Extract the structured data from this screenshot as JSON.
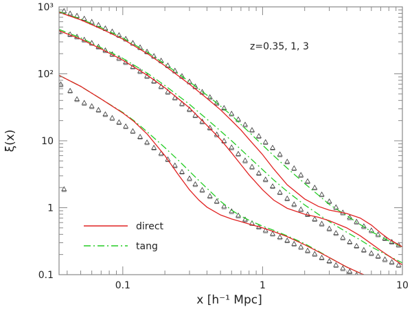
{
  "chart_data": {
    "type": "line",
    "xscale": "log",
    "yscale": "log",
    "xlim": [
      0.035,
      10
    ],
    "ylim": [
      0.1,
      1000
    ],
    "xlabel": "x [h⁻¹ Mpc]",
    "ylabel": "ξ(x)",
    "x_ticks": [
      {
        "value": 0.1,
        "label": "0.1"
      },
      {
        "value": 1,
        "label": "1"
      },
      {
        "value": 10,
        "label": "10"
      }
    ],
    "y_ticks": [
      {
        "value": 0.1,
        "label": "0.1"
      },
      {
        "value": 1,
        "label": "1"
      },
      {
        "value": 10,
        "label": "10"
      },
      {
        "value": 100,
        "label": "10²"
      },
      {
        "value": 1000,
        "label": "10³"
      }
    ],
    "annotation": "z=0.35, 1, 3",
    "legend": {
      "position": "bottom-left",
      "entries": [
        {
          "label": "direct",
          "color": "#e02020",
          "style": "solid"
        },
        {
          "label": "tang",
          "color": "#22cc22",
          "style": "dash-dot"
        }
      ]
    },
    "colors": {
      "direct": "#e02020",
      "tang": "#22cc22",
      "points": "#333333",
      "frame": "#888888"
    },
    "series": [
      {
        "group": "upper",
        "direct": {
          "x": [
            0.035,
            0.05,
            0.07,
            0.1,
            0.15,
            0.2,
            0.3,
            0.4,
            0.5,
            0.6,
            0.7,
            0.8,
            1.0,
            1.2,
            1.5,
            2.0,
            2.5,
            3.0,
            4.0,
            5.0,
            6.0,
            7.0,
            8.0,
            10.0
          ],
          "y": [
            830,
            640,
            470,
            330,
            200,
            132,
            70,
            43,
            29,
            20,
            14.5,
            10.5,
            6.2,
            3.8,
            2.2,
            1.35,
            1.05,
            0.92,
            0.82,
            0.7,
            0.55,
            0.42,
            0.34,
            0.26
          ]
        },
        "tang": {
          "x": [
            0.035,
            0.05,
            0.07,
            0.1,
            0.15,
            0.2,
            0.3,
            0.4,
            0.5,
            0.6,
            0.7,
            0.8,
            1.0,
            1.2,
            1.5,
            2.0,
            2.5,
            3.0,
            4.0,
            5.0,
            6.0,
            7.0,
            8.0,
            10.0
          ],
          "y": [
            850,
            660,
            490,
            345,
            210,
            140,
            76,
            48,
            33,
            24,
            17.5,
            13.5,
            8.6,
            6.0,
            3.9,
            2.3,
            1.55,
            1.12,
            0.76,
            0.56,
            0.44,
            0.37,
            0.32,
            0.26
          ]
        },
        "points": {
          "x": [
            0.038,
            0.042,
            0.047,
            0.053,
            0.06,
            0.067,
            0.075,
            0.084,
            0.094,
            0.105,
            0.118,
            0.133,
            0.149,
            0.167,
            0.188,
            0.21,
            0.236,
            0.265,
            0.3,
            0.33,
            0.37,
            0.42,
            0.47,
            0.53,
            0.6,
            0.67,
            0.75,
            0.84,
            0.94,
            1.05,
            1.18,
            1.33,
            1.5,
            1.68,
            1.88,
            2.1,
            2.36,
            2.65,
            3.0,
            3.35,
            3.75,
            4.2,
            4.7,
            5.3,
            6.0,
            6.7,
            7.5,
            8.4,
            9.4
          ],
          "y": [
            870,
            800,
            740,
            670,
            600,
            540,
            480,
            430,
            380,
            335,
            290,
            250,
            215,
            185,
            158,
            134,
            112,
            93,
            77,
            65,
            54,
            45,
            37,
            31,
            25.5,
            21,
            17.5,
            14.5,
            11.8,
            9.6,
            7.9,
            6.3,
            4.9,
            3.9,
            3.1,
            2.5,
            2.0,
            1.58,
            1.25,
            1.02,
            0.85,
            0.72,
            0.62,
            0.53,
            0.46,
            0.4,
            0.35,
            0.31,
            0.28
          ]
        }
      },
      {
        "group": "middle",
        "direct": {
          "x": [
            0.035,
            0.05,
            0.07,
            0.1,
            0.15,
            0.2,
            0.3,
            0.4,
            0.5,
            0.6,
            0.7,
            0.8,
            1.0,
            1.2,
            1.5,
            2.0,
            2.5,
            3.0,
            4.0,
            5.0,
            6.0,
            7.0,
            8.0,
            10.0
          ],
          "y": [
            440,
            330,
            235,
            160,
            95,
            62,
            31,
            17,
            10.5,
            6.6,
            4.4,
            3.1,
            1.85,
            1.3,
            0.98,
            0.8,
            0.72,
            0.64,
            0.5,
            0.38,
            0.29,
            0.23,
            0.19,
            0.14
          ]
        },
        "tang": {
          "x": [
            0.035,
            0.05,
            0.07,
            0.1,
            0.15,
            0.2,
            0.3,
            0.4,
            0.5,
            0.6,
            0.7,
            0.8,
            1.0,
            1.2,
            1.5,
            2.0,
            2.5,
            3.0,
            4.0,
            5.0,
            6.0,
            7.0,
            8.0,
            10.0
          ],
          "y": [
            460,
            345,
            245,
            170,
            102,
            67,
            35,
            21,
            14,
            10,
            7.4,
            5.7,
            3.7,
            2.6,
            1.75,
            1.1,
            0.8,
            0.62,
            0.43,
            0.33,
            0.26,
            0.22,
            0.19,
            0.15
          ]
        },
        "points": {
          "x": [
            0.035,
            0.042,
            0.047,
            0.053,
            0.06,
            0.067,
            0.075,
            0.084,
            0.094,
            0.105,
            0.118,
            0.133,
            0.149,
            0.167,
            0.188,
            0.21,
            0.236,
            0.265,
            0.3,
            0.33,
            0.37,
            0.42,
            0.47,
            0.53,
            0.6,
            0.67,
            0.75,
            0.84,
            0.94,
            1.05,
            1.18,
            1.33,
            1.5,
            1.68,
            1.88,
            2.1,
            2.36,
            2.65,
            3.0,
            3.35,
            3.75,
            4.2,
            4.7,
            5.3,
            6.0,
            6.7,
            7.5,
            8.4,
            9.4
          ],
          "y": [
            430,
            390,
            360,
            325,
            290,
            255,
            225,
            197,
            172,
            150,
            128,
            110,
            93,
            78,
            65,
            54,
            44,
            36,
            29.5,
            24,
            19.5,
            15.7,
            12.5,
            10,
            8.0,
            6.4,
            5.1,
            4.1,
            3.3,
            2.65,
            2.1,
            1.7,
            1.38,
            1.13,
            0.95,
            0.8,
            0.68,
            0.58,
            0.49,
            0.42,
            0.36,
            0.31,
            0.27,
            0.235,
            0.21,
            0.19,
            0.17,
            0.155,
            0.14
          ]
        }
      },
      {
        "group": "lower",
        "direct": {
          "x": [
            0.035,
            0.05,
            0.07,
            0.1,
            0.12,
            0.15,
            0.2,
            0.25,
            0.3,
            0.35,
            0.4,
            0.5,
            0.6,
            0.7,
            0.8,
            1.0,
            1.2,
            1.5,
            2.0,
            2.5,
            3.0,
            4.0,
            5.0,
            6.0
          ],
          "y": [
            95,
            65,
            42,
            26,
            19.5,
            12.5,
            6.0,
            3.1,
            1.85,
            1.3,
            1.02,
            0.78,
            0.68,
            0.62,
            0.57,
            0.5,
            0.44,
            0.37,
            0.28,
            0.22,
            0.18,
            0.13,
            0.105,
            0.09
          ]
        },
        "tang": {
          "x": [
            0.035,
            0.05,
            0.07,
            0.1,
            0.12,
            0.15,
            0.2,
            0.25,
            0.3,
            0.35,
            0.4,
            0.5,
            0.6,
            0.7,
            0.8,
            1.0,
            1.2,
            1.5,
            2.0,
            2.5,
            3.0,
            4.0,
            5.0,
            6.0
          ],
          "y": [
            95,
            65,
            42,
            26.5,
            20,
            13.5,
            7.9,
            5.1,
            3.5,
            2.55,
            1.95,
            1.25,
            0.92,
            0.75,
            0.65,
            0.53,
            0.46,
            0.38,
            0.29,
            0.225,
            0.18,
            0.13,
            0.105,
            0.09
          ]
        },
        "points": {
          "x": [
            0.036,
            0.038,
            0.042,
            0.047,
            0.053,
            0.06,
            0.067,
            0.075,
            0.084,
            0.094,
            0.105,
            0.118,
            0.133,
            0.149,
            0.167,
            0.188,
            0.21,
            0.236,
            0.265,
            0.3,
            0.33,
            0.37,
            0.42,
            0.47,
            0.53,
            0.6,
            0.67,
            0.75,
            0.84,
            0.94,
            1.05,
            1.18,
            1.33,
            1.5,
            1.68,
            1.88,
            2.1,
            2.36,
            2.65,
            3.0,
            3.35,
            3.75,
            4.2,
            4.7
          ],
          "y": [
            70,
            1.9,
            56,
            42,
            37,
            33,
            29,
            25,
            22,
            19,
            16.5,
            14,
            11.5,
            9.5,
            7.9,
            6.5,
            5.3,
            4.3,
            3.45,
            2.75,
            2.25,
            1.85,
            1.5,
            1.25,
            1.05,
            0.89,
            0.77,
            0.67,
            0.59,
            0.52,
            0.46,
            0.41,
            0.365,
            0.325,
            0.29,
            0.26,
            0.23,
            0.205,
            0.18,
            0.16,
            0.14,
            0.125,
            0.112,
            0.1
          ]
        }
      }
    ]
  }
}
